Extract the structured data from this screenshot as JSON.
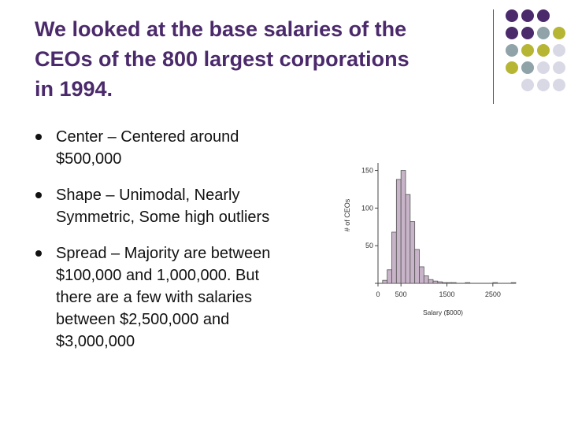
{
  "slide": {
    "title_lines": [
      "We looked at the base salaries of the",
      "CEOs of the 800 largest corporations",
      "in 1994."
    ],
    "bullets": [
      {
        "label": "Center",
        "lines": [
          "Center – Centered around",
          "$500,000"
        ]
      },
      {
        "label": "Shape",
        "lines": [
          "Shape – Unimodal, Nearly",
          "Symmetric, Some high outliers"
        ]
      },
      {
        "label": "Spread",
        "lines": [
          "Spread – Majority are between",
          "$100,000 and 1,000,000.  But",
          "there are a few with salaries",
          "between $2,500,000 and",
          "$3,000,000"
        ]
      }
    ]
  },
  "theme": {
    "title_color": "#4b2a6b",
    "dot_colors": [
      "#4b2a6b",
      "#8fa3a8",
      "#b7b634",
      "#d9d9e6"
    ],
    "bar_fill": "#c8b4c8",
    "bar_stroke": "#555555"
  },
  "chart_data": {
    "type": "bar",
    "title": "",
    "xlabel": "Salary ($000)",
    "ylabel": "# of CEOs",
    "x_ticks": [
      0,
      500,
      1500,
      2500
    ],
    "y_ticks": [
      0,
      50,
      100,
      150
    ],
    "xlim": [
      0,
      3000
    ],
    "ylim": [
      0,
      160
    ],
    "bin_width": 100,
    "bins": [
      {
        "x0": 100,
        "x1": 200,
        "count": 4
      },
      {
        "x0": 200,
        "x1": 300,
        "count": 18
      },
      {
        "x0": 300,
        "x1": 400,
        "count": 68
      },
      {
        "x0": 400,
        "x1": 500,
        "count": 138
      },
      {
        "x0": 500,
        "x1": 600,
        "count": 150
      },
      {
        "x0": 600,
        "x1": 700,
        "count": 118
      },
      {
        "x0": 700,
        "x1": 800,
        "count": 82
      },
      {
        "x0": 800,
        "x1": 900,
        "count": 45
      },
      {
        "x0": 900,
        "x1": 1000,
        "count": 22
      },
      {
        "x0": 1000,
        "x1": 1100,
        "count": 10
      },
      {
        "x0": 1100,
        "x1": 1200,
        "count": 5
      },
      {
        "x0": 1200,
        "x1": 1300,
        "count": 3
      },
      {
        "x0": 1300,
        "x1": 1400,
        "count": 2
      },
      {
        "x0": 1400,
        "x1": 1500,
        "count": 1
      },
      {
        "x0": 1500,
        "x1": 1600,
        "count": 1
      },
      {
        "x0": 1600,
        "x1": 1700,
        "count": 1
      },
      {
        "x0": 1900,
        "x1": 2000,
        "count": 1
      },
      {
        "x0": 2500,
        "x1": 2600,
        "count": 1
      },
      {
        "x0": 2900,
        "x1": 3000,
        "count": 1
      }
    ]
  }
}
